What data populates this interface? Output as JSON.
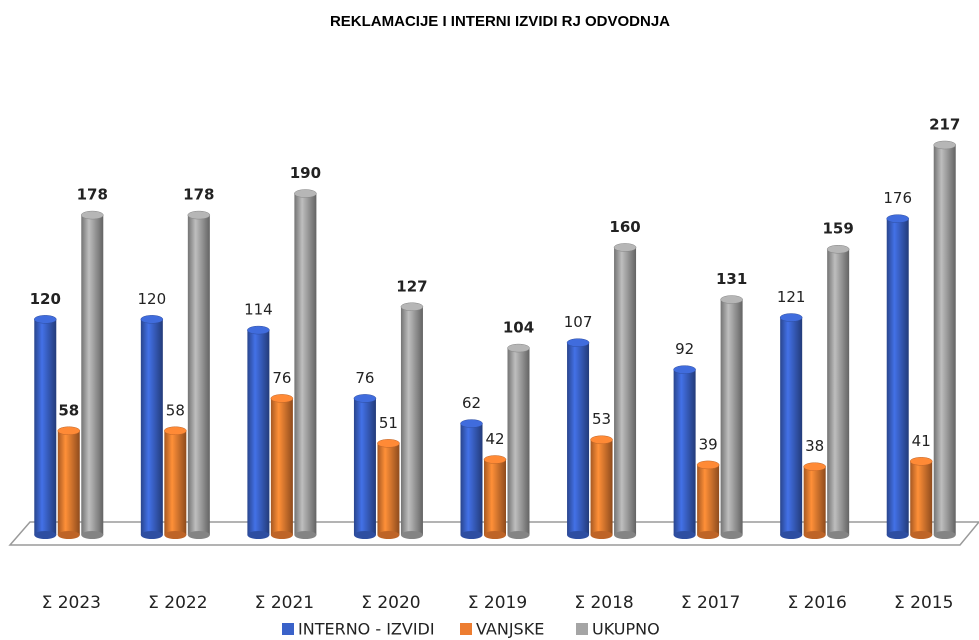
{
  "chart_data": {
    "type": "bar",
    "title": "REKLAMACIJE  I  INTERNI IZVIDI RJ ODVODNJA",
    "categories": [
      "Σ 2023",
      "Σ 2022",
      "Σ 2021",
      "Σ 2020",
      "Σ 2019",
      "Σ 2018",
      "Σ 2017",
      "Σ 2016",
      "Σ 2015"
    ],
    "series": [
      {
        "name": "INTERNO - IZVIDI",
        "color": "#3a62c9",
        "values": [
          120,
          120,
          114,
          76,
          62,
          107,
          92,
          121,
          176
        ]
      },
      {
        "name": "VANJSKE",
        "color": "#ed7d31",
        "values": [
          58,
          58,
          76,
          51,
          42,
          53,
          39,
          38,
          41
        ]
      },
      {
        "name": "UKUPNO",
        "color": "#a5a5a5",
        "values": [
          178,
          178,
          190,
          127,
          104,
          160,
          131,
          159,
          217
        ]
      }
    ],
    "legend": "bottom"
  }
}
